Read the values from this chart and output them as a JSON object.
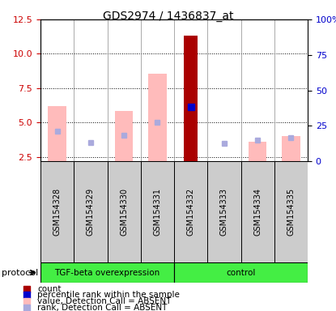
{
  "title": "GDS2974 / 1436837_at",
  "samples": [
    "GSM154328",
    "GSM154329",
    "GSM154330",
    "GSM154331",
    "GSM154332",
    "GSM154333",
    "GSM154334",
    "GSM154335"
  ],
  "group_labels": [
    "TGF-beta overexpression",
    "control"
  ],
  "value_absent": [
    6.2,
    null,
    5.85,
    8.55,
    null,
    null,
    null,
    null
  ],
  "rank_absent_tgf": [
    4.4,
    3.55,
    4.1,
    5.0,
    null,
    null,
    null,
    null
  ],
  "count_present": [
    null,
    null,
    null,
    null,
    11.3,
    null,
    null,
    null
  ],
  "rank_present": [
    null,
    null,
    null,
    null,
    6.15,
    null,
    null,
    null
  ],
  "rank_absent_ctrl": [
    null,
    null,
    null,
    null,
    null,
    3.5,
    3.75,
    3.9
  ],
  "value_absent_ctrl": [
    null,
    null,
    null,
    null,
    null,
    null,
    3.6,
    4.0
  ],
  "ylim_left": [
    2.2,
    12.5
  ],
  "ylim_right": [
    0,
    100
  ],
  "yticks_left": [
    2.5,
    5.0,
    7.5,
    10.0,
    12.5
  ],
  "yticks_right": [
    0,
    25,
    50,
    75,
    100
  ],
  "left_tick_color": "#cc0000",
  "right_tick_color": "#0000cc",
  "color_count": "#aa0000",
  "color_rank_present": "#0000cc",
  "color_value_absent": "#ffbbbb",
  "color_rank_absent": "#aaaadd",
  "legend_items": [
    {
      "label": "count",
      "color": "#aa0000"
    },
    {
      "label": "percentile rank within the sample",
      "color": "#0000cc"
    },
    {
      "label": "value, Detection Call = ABSENT",
      "color": "#ffbbbb"
    },
    {
      "label": "rank, Detection Call = ABSENT",
      "color": "#aaaadd"
    }
  ],
  "group_split": 4,
  "sample_box_color": "#cccccc",
  "protocol_color": "#44ee44"
}
